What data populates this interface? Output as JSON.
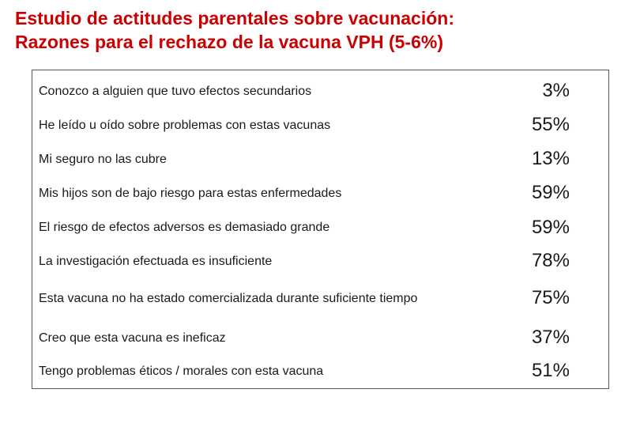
{
  "title": {
    "line1": "Estudio de actitudes parentales sobre vacunación:",
    "line2": "Razones para el rechazo de la vacuna VPH (5-6%)"
  },
  "rows": [
    {
      "reason": "Conozco a alguien que tuvo efectos secundarios",
      "percent": "3%"
    },
    {
      "reason": "He leído u oído sobre problemas con estas vacunas",
      "percent": "55%"
    },
    {
      "reason": "Mi seguro no las cubre",
      "percent": "13%"
    },
    {
      "reason": "Mis hijos son de bajo riesgo para estas enfermedades",
      "percent": "59%"
    },
    {
      "reason": "El riesgo de efectos adversos es demasiado grande",
      "percent": "59%"
    },
    {
      "reason": "La investigación efectuada es insuficiente",
      "percent": "78%"
    },
    {
      "reason": "Esta vacuna no ha estado comercializada durante suficiente tiempo",
      "percent": "75%"
    },
    {
      "reason": "Creo que esta vacuna es ineficaz",
      "percent": "37%"
    },
    {
      "reason": "Tengo problemas éticos / morales con esta vacuna",
      "percent": "51%"
    }
  ],
  "colors": {
    "title": "#cc0000",
    "text": "#1a1a1a",
    "border": "#555555"
  }
}
